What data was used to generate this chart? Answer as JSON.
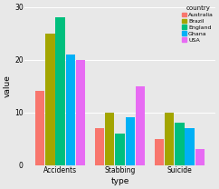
{
  "title": "",
  "xlabel": "type",
  "ylabel": "value",
  "legend_title": "country",
  "categories": [
    "Accidents",
    "Stabbing",
    "Suicide"
  ],
  "countries": [
    "Australia",
    "Brazil",
    "England",
    "Ghana",
    "USA"
  ],
  "colors": [
    "#F8766D",
    "#A3A500",
    "#00BF7D",
    "#00B0F6",
    "#E76BF3"
  ],
  "values": {
    "Accidents": [
      14,
      25,
      28,
      21,
      20
    ],
    "Stabbing": [
      7,
      10,
      6,
      9,
      15
    ],
    "Suicide": [
      5,
      10,
      8,
      7,
      3
    ]
  },
  "ylim": [
    0,
    30
  ],
  "yticks": [
    0,
    10,
    20,
    30
  ],
  "background_color": "#E8E8E8",
  "panel_color": "#E8E8E8",
  "grid_color": "#FFFFFF",
  "bar_width": 0.12,
  "group_centers": [
    0.3,
    1.0,
    1.7
  ]
}
